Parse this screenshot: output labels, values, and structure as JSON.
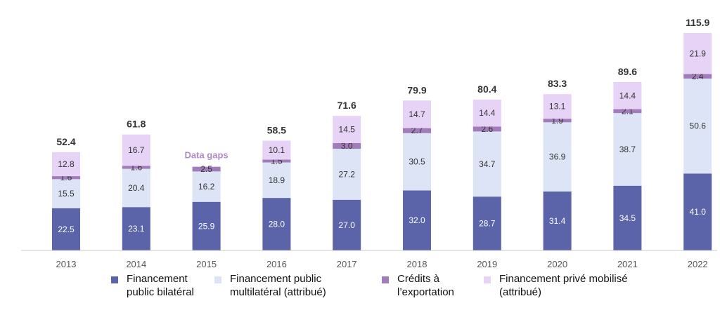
{
  "chart_data": {
    "type": "bar",
    "stacked": true,
    "categories": [
      "2013",
      "2014",
      "2015",
      "2016",
      "2017",
      "2018",
      "2019",
      "2020",
      "2021",
      "2022"
    ],
    "series": [
      {
        "name": "Financement public bilatéral",
        "color": "#5b64a8",
        "values": [
          22.5,
          23.1,
          25.9,
          28.0,
          27.0,
          32.0,
          28.7,
          31.4,
          34.5,
          41.0
        ]
      },
      {
        "name": "Financement public multilatéral (attribué)",
        "color": "#dde4f6",
        "values": [
          15.5,
          20.4,
          16.2,
          18.9,
          27.2,
          30.5,
          34.7,
          36.9,
          38.7,
          50.6
        ]
      },
      {
        "name": "Crédits à l’exportation",
        "color": "#a27bba",
        "values": [
          1.6,
          1.6,
          2.5,
          1.5,
          3.0,
          2.7,
          2.6,
          1.9,
          2.1,
          2.4
        ]
      },
      {
        "name": "Financement privé mobilisé (attribué)",
        "color": "#e6d3f5",
        "values": [
          12.8,
          16.7,
          null,
          10.1,
          14.5,
          14.7,
          14.4,
          13.1,
          14.4,
          21.9
        ]
      }
    ],
    "totals": [
      "52.4",
      "61.8",
      null,
      "58.5",
      "71.6",
      "79.9",
      "80.4",
      "83.3",
      "89.6",
      "115.9"
    ],
    "annotations": [
      {
        "category": "2015",
        "text": "Data gaps",
        "color": "#b08ac7"
      }
    ],
    "ylim": [
      0,
      120
    ],
    "grid": false,
    "legend": "bottom"
  },
  "legend": {
    "items": [
      {
        "line1": "Financement",
        "line2": "public bilatéral",
        "color": "#5b64a8"
      },
      {
        "line1": "Financement public",
        "line2": "multilatéral (attribué)",
        "color": "#dde4f6"
      },
      {
        "line1": "Crédits à",
        "line2": "l’exportation",
        "color": "#a27bba"
      },
      {
        "line1": "Financement privé mobilisé",
        "line2": "(attribué)",
        "color": "#e6d3f5"
      }
    ]
  }
}
